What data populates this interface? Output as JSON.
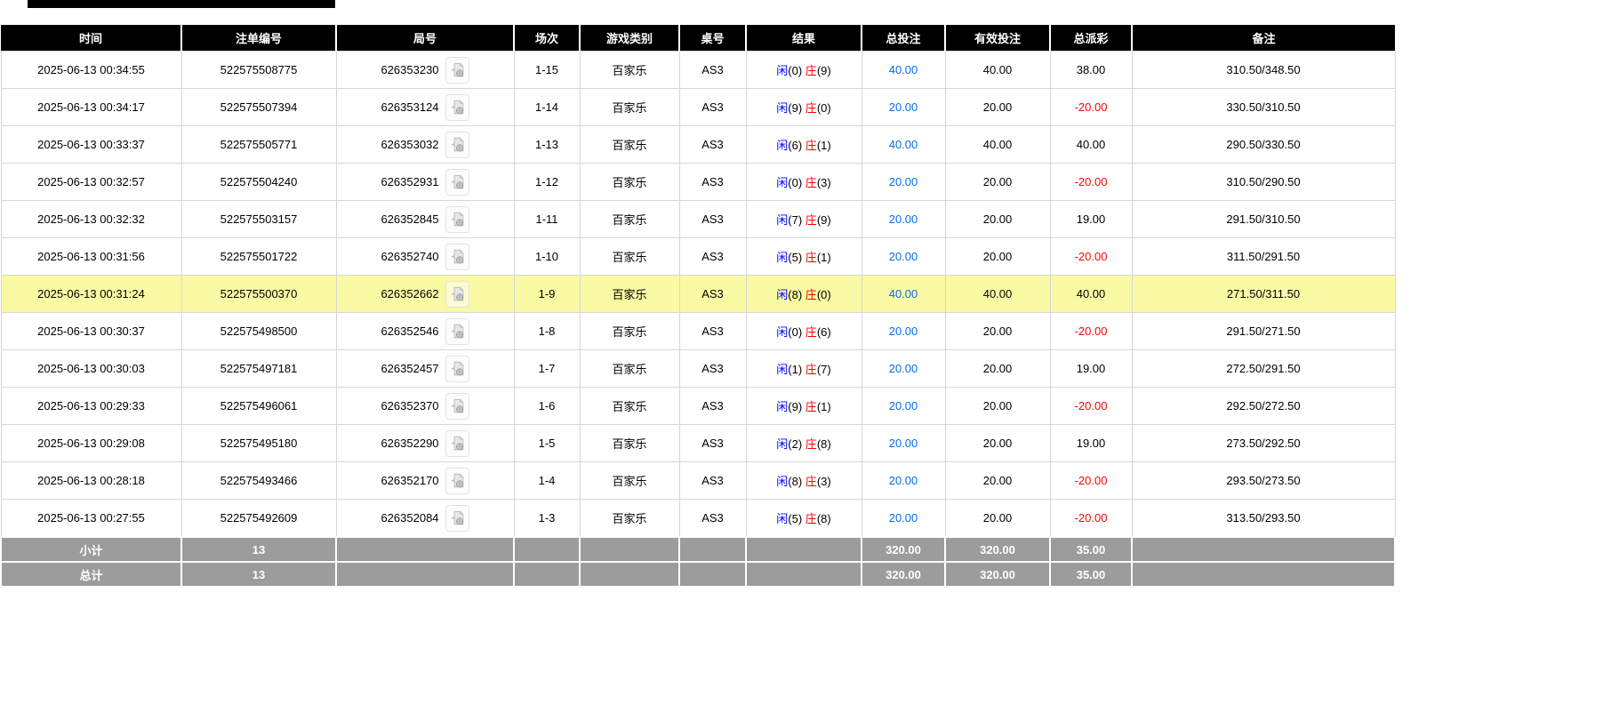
{
  "table": {
    "columns": [
      {
        "key": "time",
        "label": "时间"
      },
      {
        "key": "bet_no",
        "label": "注单编号"
      },
      {
        "key": "round_no",
        "label": "局号"
      },
      {
        "key": "session",
        "label": "场次"
      },
      {
        "key": "game_type",
        "label": "游戏类别"
      },
      {
        "key": "table_no",
        "label": "桌号"
      },
      {
        "key": "result",
        "label": "结果"
      },
      {
        "key": "total_bet",
        "label": "总投注"
      },
      {
        "key": "valid_bet",
        "label": "有效投注"
      },
      {
        "key": "total_payout",
        "label": "总派彩"
      },
      {
        "key": "remark",
        "label": "备注"
      }
    ],
    "result_labels": {
      "player": "闲",
      "banker": "庄"
    },
    "rows": [
      {
        "time": "2025-06-13 00:34:55",
        "bet_no": "522575508775",
        "round_no": "626353230",
        "session": "1-15",
        "game_type": "百家乐",
        "table_no": "AS3",
        "player_points": "0",
        "banker_points": "9",
        "total_bet": "40.00",
        "valid_bet": "40.00",
        "total_payout": "38.00",
        "remark": "310.50/348.50",
        "highlighted": false
      },
      {
        "time": "2025-06-13 00:34:17",
        "bet_no": "522575507394",
        "round_no": "626353124",
        "session": "1-14",
        "game_type": "百家乐",
        "table_no": "AS3",
        "player_points": "9",
        "banker_points": "0",
        "total_bet": "20.00",
        "valid_bet": "20.00",
        "total_payout": "-20.00",
        "remark": "330.50/310.50",
        "highlighted": false
      },
      {
        "time": "2025-06-13 00:33:37",
        "bet_no": "522575505771",
        "round_no": "626353032",
        "session": "1-13",
        "game_type": "百家乐",
        "table_no": "AS3",
        "player_points": "6",
        "banker_points": "1",
        "total_bet": "40.00",
        "valid_bet": "40.00",
        "total_payout": "40.00",
        "remark": "290.50/330.50",
        "highlighted": false
      },
      {
        "time": "2025-06-13 00:32:57",
        "bet_no": "522575504240",
        "round_no": "626352931",
        "session": "1-12",
        "game_type": "百家乐",
        "table_no": "AS3",
        "player_points": "0",
        "banker_points": "3",
        "total_bet": "20.00",
        "valid_bet": "20.00",
        "total_payout": "-20.00",
        "remark": "310.50/290.50",
        "highlighted": false
      },
      {
        "time": "2025-06-13 00:32:32",
        "bet_no": "522575503157",
        "round_no": "626352845",
        "session": "1-11",
        "game_type": "百家乐",
        "table_no": "AS3",
        "player_points": "7",
        "banker_points": "9",
        "total_bet": "20.00",
        "valid_bet": "20.00",
        "total_payout": "19.00",
        "remark": "291.50/310.50",
        "highlighted": false
      },
      {
        "time": "2025-06-13 00:31:56",
        "bet_no": "522575501722",
        "round_no": "626352740",
        "session": "1-10",
        "game_type": "百家乐",
        "table_no": "AS3",
        "player_points": "5",
        "banker_points": "1",
        "total_bet": "20.00",
        "valid_bet": "20.00",
        "total_payout": "-20.00",
        "remark": "311.50/291.50",
        "highlighted": false
      },
      {
        "time": "2025-06-13 00:31:24",
        "bet_no": "522575500370",
        "round_no": "626352662",
        "session": "1-9",
        "game_type": "百家乐",
        "table_no": "AS3",
        "player_points": "8",
        "banker_points": "0",
        "total_bet": "40.00",
        "valid_bet": "40.00",
        "total_payout": "40.00",
        "remark": "271.50/311.50",
        "highlighted": true
      },
      {
        "time": "2025-06-13 00:30:37",
        "bet_no": "522575498500",
        "round_no": "626352546",
        "session": "1-8",
        "game_type": "百家乐",
        "table_no": "AS3",
        "player_points": "0",
        "banker_points": "6",
        "total_bet": "20.00",
        "valid_bet": "20.00",
        "total_payout": "-20.00",
        "remark": "291.50/271.50",
        "highlighted": false
      },
      {
        "time": "2025-06-13 00:30:03",
        "bet_no": "522575497181",
        "round_no": "626352457",
        "session": "1-7",
        "game_type": "百家乐",
        "table_no": "AS3",
        "player_points": "1",
        "banker_points": "7",
        "total_bet": "20.00",
        "valid_bet": "20.00",
        "total_payout": "19.00",
        "remark": "272.50/291.50",
        "highlighted": false
      },
      {
        "time": "2025-06-13 00:29:33",
        "bet_no": "522575496061",
        "round_no": "626352370",
        "session": "1-6",
        "game_type": "百家乐",
        "table_no": "AS3",
        "player_points": "9",
        "banker_points": "1",
        "total_bet": "20.00",
        "valid_bet": "20.00",
        "total_payout": "-20.00",
        "remark": "292.50/272.50",
        "highlighted": false
      },
      {
        "time": "2025-06-13 00:29:08",
        "bet_no": "522575495180",
        "round_no": "626352290",
        "session": "1-5",
        "game_type": "百家乐",
        "table_no": "AS3",
        "player_points": "2",
        "banker_points": "8",
        "total_bet": "20.00",
        "valid_bet": "20.00",
        "total_payout": "19.00",
        "remark": "273.50/292.50",
        "highlighted": false
      },
      {
        "time": "2025-06-13 00:28:18",
        "bet_no": "522575493466",
        "round_no": "626352170",
        "session": "1-4",
        "game_type": "百家乐",
        "table_no": "AS3",
        "player_points": "8",
        "banker_points": "3",
        "total_bet": "20.00",
        "valid_bet": "20.00",
        "total_payout": "-20.00",
        "remark": "293.50/273.50",
        "highlighted": false
      },
      {
        "time": "2025-06-13 00:27:55",
        "bet_no": "522575492609",
        "round_no": "626352084",
        "session": "1-3",
        "game_type": "百家乐",
        "table_no": "AS3",
        "player_points": "5",
        "banker_points": "8",
        "total_bet": "20.00",
        "valid_bet": "20.00",
        "total_payout": "-20.00",
        "remark": "313.50/293.50",
        "highlighted": false
      }
    ],
    "summary_rows": [
      {
        "label": "小计",
        "count": "13",
        "total_bet": "320.00",
        "valid_bet": "320.00",
        "total_payout": "35.00"
      },
      {
        "label": "总计",
        "count": "13",
        "total_bet": "320.00",
        "valid_bet": "320.00",
        "total_payout": "35.00"
      }
    ]
  },
  "icons": {
    "round_video": "video-replay-icon"
  },
  "colors": {
    "header_bg": "#000000",
    "summary_bg": "#9c9c9c",
    "highlight_yellow": "#fafaa5",
    "player_blue": "#0000ff",
    "banker_red": "#ff0000",
    "bet_amount_blue": "#0a6cf0",
    "negative_red": "#ff0000",
    "grid_border": "#d6d6d6"
  }
}
